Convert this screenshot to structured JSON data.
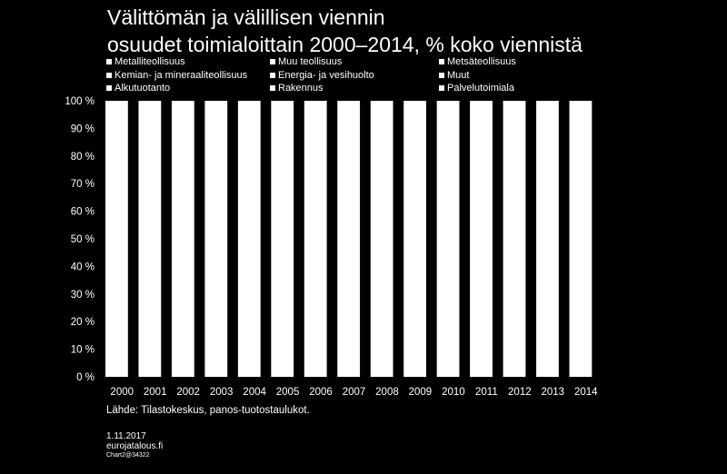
{
  "title_line1": "Välittömän ja välillisen viennin",
  "title_line2": "osuudet toimialoittain 2000–2014, % koko viennistä",
  "legend": [
    "Metalliteollisuus",
    "Muu teollisuus",
    "Metsäteollisuus",
    "Kemian- ja mineraaliteollisuus",
    "Energia- ja vesihuolto",
    "Muut",
    "Alkutuotanto",
    "Rakennus",
    "Palvelutoimiala"
  ],
  "source": "Lähde: Tilastokeskus, panos-tuotostaulukot.",
  "footer": {
    "date": "1.11.2017",
    "site": "eurojatalous.fi",
    "chart_id": "Chart2@34322"
  },
  "colors": {
    "background": "#000000",
    "bars": "#ffffff",
    "text": "#ffffff"
  },
  "chart_data": {
    "type": "bar",
    "stacked": true,
    "categories": [
      "2000",
      "2001",
      "2002",
      "2003",
      "2004",
      "2005",
      "2006",
      "2007",
      "2008",
      "2009",
      "2010",
      "2011",
      "2012",
      "2013",
      "2014"
    ],
    "series": [
      {
        "name": "Metalliteollisuus",
        "values": [
          null,
          null,
          null,
          null,
          null,
          null,
          null,
          null,
          null,
          null,
          null,
          null,
          null,
          null,
          null
        ]
      },
      {
        "name": "Muu teollisuus",
        "values": [
          null,
          null,
          null,
          null,
          null,
          null,
          null,
          null,
          null,
          null,
          null,
          null,
          null,
          null,
          null
        ]
      },
      {
        "name": "Metsäteollisuus",
        "values": [
          null,
          null,
          null,
          null,
          null,
          null,
          null,
          null,
          null,
          null,
          null,
          null,
          null,
          null,
          null
        ]
      },
      {
        "name": "Kemian- ja mineraaliteollisuus",
        "values": [
          null,
          null,
          null,
          null,
          null,
          null,
          null,
          null,
          null,
          null,
          null,
          null,
          null,
          null,
          null
        ]
      },
      {
        "name": "Energia- ja vesihuolto",
        "values": [
          null,
          null,
          null,
          null,
          null,
          null,
          null,
          null,
          null,
          null,
          null,
          null,
          null,
          null,
          null
        ]
      },
      {
        "name": "Muut",
        "values": [
          null,
          null,
          null,
          null,
          null,
          null,
          null,
          null,
          null,
          null,
          null,
          null,
          null,
          null,
          null
        ]
      },
      {
        "name": "Alkutuotanto",
        "values": [
          null,
          null,
          null,
          null,
          null,
          null,
          null,
          null,
          null,
          null,
          null,
          null,
          null,
          null,
          null
        ]
      },
      {
        "name": "Rakennus",
        "values": [
          null,
          null,
          null,
          null,
          null,
          null,
          null,
          null,
          null,
          null,
          null,
          null,
          null,
          null,
          null
        ]
      },
      {
        "name": "Palvelutoimiala",
        "values": [
          null,
          null,
          null,
          null,
          null,
          null,
          null,
          null,
          null,
          null,
          null,
          null,
          null,
          null,
          null
        ]
      }
    ],
    "totals": [
      100,
      100,
      100,
      100,
      100,
      100,
      100,
      100,
      100,
      100,
      100,
      100,
      100,
      100,
      100
    ],
    "yticks": [
      "0 %",
      "10 %",
      "20 %",
      "30 %",
      "40 %",
      "50 %",
      "60 %",
      "70 %",
      "80 %",
      "90 %",
      "100 %"
    ],
    "ylim": [
      0,
      100
    ],
    "grid": false,
    "legend_position": "top"
  }
}
